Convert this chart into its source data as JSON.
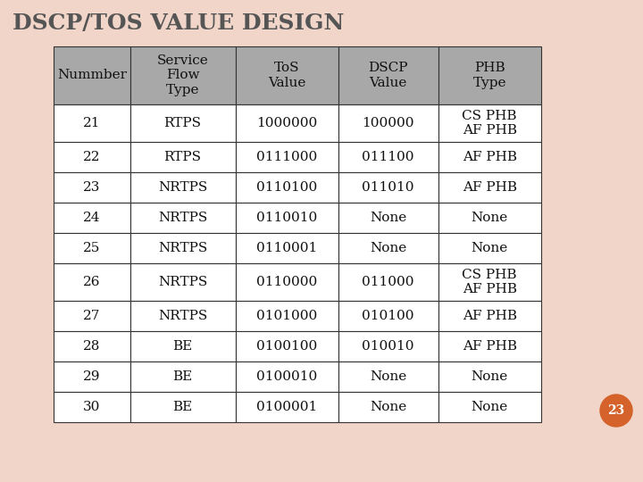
{
  "title": "DSCP/TOS VALUE DESIGN",
  "headers": [
    "Nummber",
    "Service\nFlow\nType",
    "ToS\nValue",
    "DSCP\nValue",
    "PHB\nType"
  ],
  "rows": [
    [
      "21",
      "RTPS",
      "1000000",
      "100000",
      "CS PHB\nAF PHB"
    ],
    [
      "22",
      "RTPS",
      "0111000",
      "011100",
      "AF PHB"
    ],
    [
      "23",
      "NRTPS",
      "0110100",
      "011010",
      "AF PHB"
    ],
    [
      "24",
      "NRTPS",
      "0110010",
      "None",
      "None"
    ],
    [
      "25",
      "NRTPS",
      "0110001",
      "None",
      "None"
    ],
    [
      "26",
      "NRTPS",
      "0110000",
      "011000",
      "CS PHB\nAF PHB"
    ],
    [
      "27",
      "NRTPS",
      "0101000",
      "010100",
      "AF PHB"
    ],
    [
      "28",
      "BE",
      "0100100",
      "010010",
      "AF PHB"
    ],
    [
      "29",
      "BE",
      "0100010",
      "None",
      "None"
    ],
    [
      "30",
      "BE",
      "0100001",
      "None",
      "None"
    ]
  ],
  "header_bg": "#a8a8a8",
  "cell_bg": "#ffffff",
  "border_color": "#333333",
  "title_color": "#555555",
  "cell_text_color": "#111111",
  "page_bg": "#f0d5c8",
  "badge_color": "#d4622a",
  "badge_text": "23",
  "title_fontsize": 18,
  "header_fontsize": 11,
  "cell_fontsize": 11
}
